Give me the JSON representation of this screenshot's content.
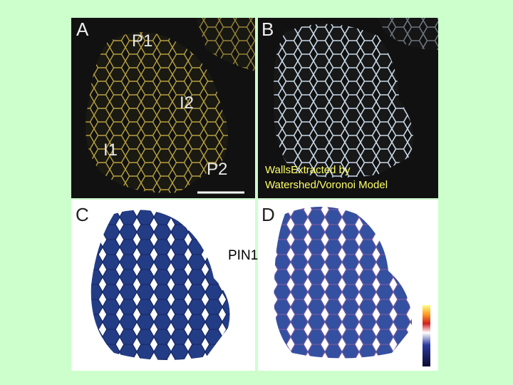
{
  "panel_labels": [
    "A",
    "B",
    "C",
    "D"
  ],
  "region_labels": [
    "P1",
    "I2",
    "I1",
    "P2"
  ],
  "caption_lines": [
    "WallsExtracted by",
    "Watershed/Voronoi Model"
  ],
  "marker_label": "PIN1"
}
